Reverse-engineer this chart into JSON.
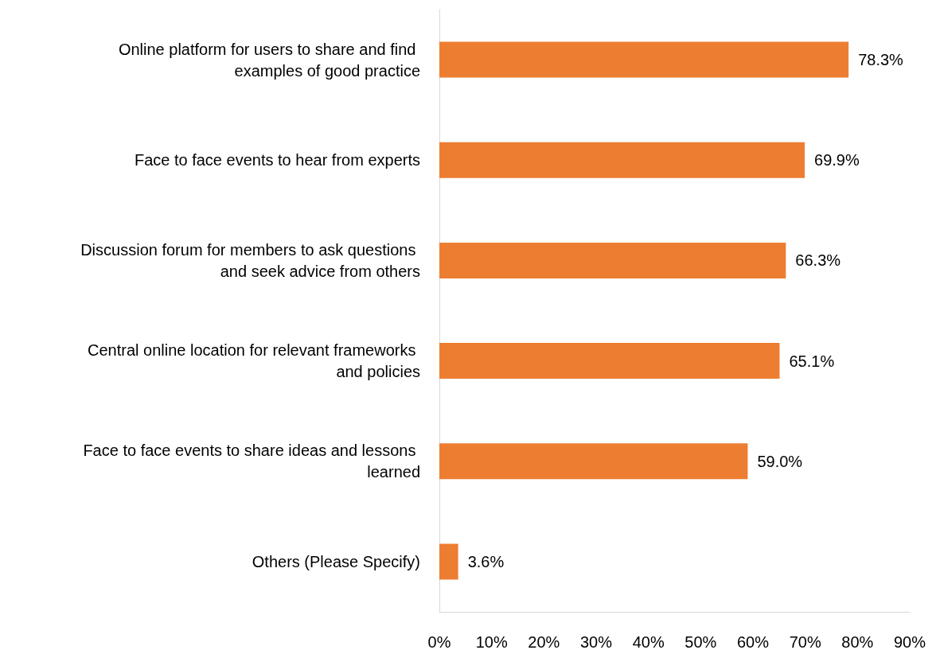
{
  "chart_data": {
    "type": "bar",
    "orientation": "horizontal",
    "categories": [
      "Online platform for users to share and find examples of good practice",
      "Face to face events to hear from experts",
      "Discussion forum for members to ask questions and seek advice from others",
      "Central online location for relevant frameworks and policies",
      "Face to face events to share ideas and lessons learned",
      "Others (Please Specify)"
    ],
    "values": [
      78.3,
      69.9,
      66.3,
      65.1,
      59.0,
      3.6
    ],
    "value_labels": [
      "78.3%",
      "69.9%",
      "66.3%",
      "65.1%",
      "59.0%",
      "3.6%"
    ],
    "color": "#ed7d31",
    "xlim": [
      0,
      90
    ],
    "xticks": [
      {
        "value": 0,
        "label": "0%"
      },
      {
        "value": 10,
        "label": "10%"
      },
      {
        "value": 20,
        "label": "20%"
      },
      {
        "value": 30,
        "label": "30%"
      },
      {
        "value": 40,
        "label": "40%"
      },
      {
        "value": 50,
        "label": "50%"
      },
      {
        "value": 60,
        "label": "60%"
      },
      {
        "value": 70,
        "label": "70%"
      },
      {
        "value": 80,
        "label": "80%"
      },
      {
        "value": 90,
        "label": "90%"
      }
    ],
    "grid": false
  }
}
